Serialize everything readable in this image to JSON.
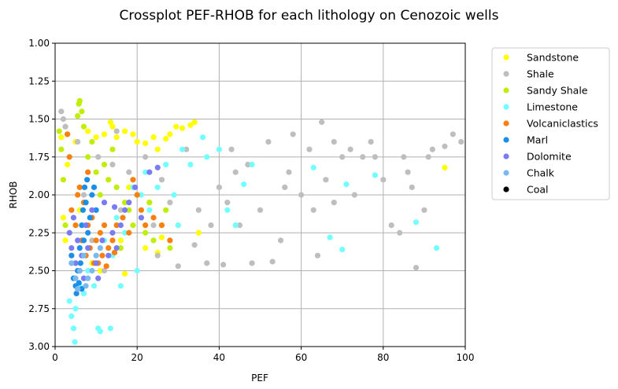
{
  "chart_data": {
    "type": "scatter",
    "title": "Crossplot PEF-RHOB for each lithology on Cenozoic wells",
    "xlabel": "PEF",
    "ylabel": "RHOB",
    "xlim": [
      0,
      100
    ],
    "ylim": [
      1.0,
      3.0
    ],
    "y_inverted": true,
    "xticks": [
      "0",
      "20",
      "40",
      "60",
      "80",
      "100"
    ],
    "yticks": [
      "1.00",
      "1.25",
      "1.50",
      "1.75",
      "2.00",
      "2.25",
      "2.50",
      "2.75",
      "3.00"
    ],
    "grid": true,
    "legend_position": "outside-right",
    "series": [
      {
        "name": "Sandstone",
        "color": "#ffff00",
        "points": [
          [
            1.5,
            1.62
          ],
          [
            2.0,
            2.15
          ],
          [
            2.5,
            2.3
          ],
          [
            3.0,
            1.8
          ],
          [
            4.0,
            2.4
          ],
          [
            5.0,
            1.65
          ],
          [
            8.0,
            1.58
          ],
          [
            10.0,
            1.62
          ],
          [
            12.0,
            1.6
          ],
          [
            13.5,
            1.52
          ],
          [
            14.0,
            1.55
          ],
          [
            15.0,
            1.62
          ],
          [
            17.0,
            1.58
          ],
          [
            19.0,
            1.6
          ],
          [
            20.0,
            1.65
          ],
          [
            22.0,
            1.66
          ],
          [
            24.0,
            1.62
          ],
          [
            25.0,
            1.7
          ],
          [
            27.0,
            1.63
          ],
          [
            28.0,
            1.6
          ],
          [
            29.5,
            1.55
          ],
          [
            31.0,
            1.56
          ],
          [
            33.0,
            1.54
          ],
          [
            34.0,
            1.52
          ],
          [
            9.0,
            2.45
          ],
          [
            11.0,
            2.5
          ],
          [
            17.0,
            2.52
          ],
          [
            22.0,
            2.35
          ],
          [
            25.0,
            2.38
          ],
          [
            30.0,
            2.2
          ],
          [
            35.0,
            2.25
          ],
          [
            95.0,
            1.82
          ],
          [
            18.0,
            1.95
          ],
          [
            23.0,
            2.05
          ],
          [
            6.0,
            2.1
          ],
          [
            13.0,
            1.9
          ],
          [
            26.0,
            2.28
          ],
          [
            16.0,
            2.3
          ]
        ]
      },
      {
        "name": "Shale",
        "color": "#bebebe",
        "points": [
          [
            1.5,
            1.45
          ],
          [
            2.0,
            1.5
          ],
          [
            2.5,
            1.55
          ],
          [
            5.5,
            1.65
          ],
          [
            7.0,
            2.0
          ],
          [
            9.0,
            2.3
          ],
          [
            10.5,
            1.75
          ],
          [
            12.0,
            2.5
          ],
          [
            14.0,
            1.8
          ],
          [
            16.0,
            2.1
          ],
          [
            18.0,
            1.85
          ],
          [
            20.0,
            2.0
          ],
          [
            22.0,
            1.75
          ],
          [
            24.0,
            2.2
          ],
          [
            26.0,
            1.9
          ],
          [
            28.0,
            2.05
          ],
          [
            30.0,
            2.47
          ],
          [
            32.0,
            1.7
          ],
          [
            35.0,
            2.1
          ],
          [
            37.0,
            2.45
          ],
          [
            40.0,
            1.95
          ],
          [
            41.0,
            2.46
          ],
          [
            43.0,
            1.7
          ],
          [
            45.0,
            2.2
          ],
          [
            47.0,
            1.8
          ],
          [
            48.0,
            2.45
          ],
          [
            50.0,
            2.1
          ],
          [
            52.0,
            1.65
          ],
          [
            53.0,
            2.44
          ],
          [
            55.0,
            2.3
          ],
          [
            57.0,
            1.85
          ],
          [
            58.0,
            1.6
          ],
          [
            60.0,
            2.0
          ],
          [
            62.0,
            1.7
          ],
          [
            63.0,
            2.1
          ],
          [
            64.0,
            2.4
          ],
          [
            65.0,
            1.52
          ],
          [
            66.0,
            1.9
          ],
          [
            68.0,
            2.05
          ],
          [
            70.0,
            1.75
          ],
          [
            72.0,
            1.7
          ],
          [
            73.0,
            2.0
          ],
          [
            75.0,
            1.75
          ],
          [
            77.0,
            1.65
          ],
          [
            78.0,
            1.75
          ],
          [
            80.0,
            1.9
          ],
          [
            82.0,
            2.2
          ],
          [
            84.0,
            2.25
          ],
          [
            85.0,
            1.75
          ],
          [
            87.0,
            1.95
          ],
          [
            88.0,
            2.48
          ],
          [
            90.0,
            2.1
          ],
          [
            92.0,
            1.7
          ],
          [
            95.0,
            1.68
          ],
          [
            97.0,
            1.6
          ],
          [
            99.0,
            1.65
          ],
          [
            38.0,
            2.2
          ],
          [
            44.0,
            1.85
          ],
          [
            56.0,
            1.95
          ],
          [
            68.0,
            1.65
          ],
          [
            86.0,
            1.85
          ],
          [
            91.0,
            1.75
          ],
          [
            34.0,
            2.33
          ],
          [
            42.0,
            2.05
          ],
          [
            25.0,
            2.4
          ],
          [
            15.0,
            1.58
          ]
        ]
      },
      {
        "name": "Sandy Shale",
        "color": "#c0ee0a",
        "points": [
          [
            1.0,
            1.58
          ],
          [
            1.5,
            1.7
          ],
          [
            2.0,
            1.9
          ],
          [
            2.5,
            2.2
          ],
          [
            3.0,
            1.6
          ],
          [
            5.5,
            1.48
          ],
          [
            5.8,
            1.4
          ],
          [
            6.0,
            1.38
          ],
          [
            6.5,
            1.45
          ],
          [
            7.0,
            1.55
          ],
          [
            8.0,
            1.75
          ],
          [
            9.0,
            1.65
          ],
          [
            10.0,
            1.85
          ],
          [
            12.0,
            1.8
          ],
          [
            13.0,
            1.9
          ],
          [
            14.0,
            1.7
          ],
          [
            15.0,
            1.95
          ],
          [
            17.0,
            2.05
          ],
          [
            18.0,
            2.1
          ],
          [
            19.0,
            2.2
          ],
          [
            20.0,
            2.0
          ],
          [
            21.0,
            2.15
          ],
          [
            22.0,
            2.25
          ],
          [
            23.0,
            2.05
          ],
          [
            24.0,
            2.3
          ],
          [
            26.0,
            2.2
          ],
          [
            27.0,
            2.1
          ],
          [
            28.0,
            2.35
          ],
          [
            16.0,
            2.35
          ],
          [
            11.0,
            2.0
          ]
        ]
      },
      {
        "name": "Limestone",
        "color": "#74ffff",
        "points": [
          [
            3.5,
            2.7
          ],
          [
            4.0,
            2.8
          ],
          [
            4.5,
            2.88
          ],
          [
            4.8,
            2.97
          ],
          [
            5.0,
            2.75
          ],
          [
            6.0,
            2.6
          ],
          [
            7.0,
            2.65
          ],
          [
            8.0,
            2.5
          ],
          [
            9.5,
            2.6
          ],
          [
            10.5,
            2.88
          ],
          [
            11.0,
            2.9
          ],
          [
            13.5,
            2.88
          ],
          [
            12.0,
            2.3
          ],
          [
            14.0,
            2.4
          ],
          [
            15.0,
            2.15
          ],
          [
            17.0,
            2.25
          ],
          [
            19.0,
            1.95
          ],
          [
            21.0,
            2.0
          ],
          [
            22.0,
            1.85
          ],
          [
            23.0,
            2.1
          ],
          [
            25.0,
            1.95
          ],
          [
            27.0,
            1.8
          ],
          [
            29.0,
            2.0
          ],
          [
            31.0,
            1.7
          ],
          [
            33.0,
            1.8
          ],
          [
            37.0,
            1.75
          ],
          [
            40.0,
            1.7
          ],
          [
            42.0,
            2.1
          ],
          [
            44.0,
            2.2
          ],
          [
            46.0,
            1.93
          ],
          [
            48.0,
            1.8
          ],
          [
            63.0,
            1.82
          ],
          [
            67.0,
            2.28
          ],
          [
            70.0,
            2.36
          ],
          [
            71.0,
            1.93
          ],
          [
            78.0,
            1.87
          ],
          [
            88.0,
            2.18
          ],
          [
            93.0,
            2.35
          ],
          [
            30.0,
            2.2
          ],
          [
            36.0,
            1.62
          ],
          [
            20.0,
            2.5
          ],
          [
            16.0,
            2.6
          ]
        ]
      },
      {
        "name": "Volcaniclastics",
        "color": "#f97f0f",
        "points": [
          [
            3.0,
            1.6
          ],
          [
            3.5,
            1.75
          ],
          [
            4.0,
            2.1
          ],
          [
            5.0,
            2.2
          ],
          [
            5.5,
            2.0
          ],
          [
            6.5,
            2.3
          ],
          [
            7.0,
            2.05
          ],
          [
            7.5,
            2.4
          ],
          [
            8.0,
            2.2
          ],
          [
            8.5,
            2.35
          ],
          [
            9.0,
            2.15
          ],
          [
            9.5,
            2.45
          ],
          [
            10.0,
            2.3
          ],
          [
            11.0,
            2.25
          ],
          [
            11.5,
            2.4
          ],
          [
            12.0,
            2.2
          ],
          [
            13.0,
            2.35
          ],
          [
            14.0,
            2.3
          ],
          [
            15.0,
            2.2
          ],
          [
            16.5,
            2.15
          ],
          [
            18.0,
            2.25
          ],
          [
            19.0,
            1.9
          ],
          [
            20.0,
            2.0
          ],
          [
            21.0,
            2.1
          ],
          [
            22.0,
            2.2
          ],
          [
            24.0,
            2.15
          ],
          [
            26.0,
            2.2
          ],
          [
            28.0,
            2.3
          ],
          [
            10.5,
            2.45
          ],
          [
            12.5,
            2.47
          ],
          [
            14.5,
            2.38
          ],
          [
            6.0,
            1.95
          ],
          [
            8.0,
            1.85
          ]
        ]
      },
      {
        "name": "Marl",
        "color": "#1a8fe8",
        "points": [
          [
            4.0,
            2.4
          ],
          [
            4.5,
            2.55
          ],
          [
            5.0,
            2.6
          ],
          [
            5.2,
            2.65
          ],
          [
            5.5,
            2.5
          ],
          [
            6.0,
            2.35
          ],
          [
            6.2,
            2.45
          ],
          [
            6.5,
            2.2
          ],
          [
            6.8,
            2.1
          ],
          [
            7.0,
            2.3
          ],
          [
            7.2,
            1.95
          ],
          [
            7.5,
            2.05
          ],
          [
            7.8,
            1.9
          ],
          [
            8.0,
            2.25
          ],
          [
            8.5,
            2.15
          ],
          [
            9.0,
            2.0
          ],
          [
            9.5,
            1.95
          ],
          [
            10.0,
            2.1
          ],
          [
            5.8,
            2.58
          ],
          [
            6.5,
            2.62
          ]
        ]
      },
      {
        "name": "Dolomite",
        "color": "#7b7bf4",
        "points": [
          [
            3.5,
            2.25
          ],
          [
            4.0,
            2.35
          ],
          [
            4.5,
            2.15
          ],
          [
            5.0,
            2.45
          ],
          [
            5.5,
            2.3
          ],
          [
            6.0,
            2.5
          ],
          [
            6.5,
            2.4
          ],
          [
            7.0,
            2.55
          ],
          [
            7.5,
            2.2
          ],
          [
            8.0,
            2.35
          ],
          [
            9.0,
            2.1
          ],
          [
            10.0,
            2.45
          ],
          [
            10.5,
            2.55
          ],
          [
            11.5,
            2.3
          ],
          [
            12.0,
            2.05
          ],
          [
            13.0,
            2.4
          ],
          [
            14.0,
            2.25
          ],
          [
            15.0,
            2.35
          ],
          [
            16.0,
            2.2
          ],
          [
            17.0,
            2.1
          ],
          [
            18.0,
            2.05
          ],
          [
            19.5,
            1.95
          ],
          [
            21.0,
            2.15
          ],
          [
            23.0,
            1.85
          ],
          [
            25.0,
            1.82
          ],
          [
            14.5,
            2.08
          ]
        ]
      },
      {
        "name": "Chalk",
        "color": "#7ab8f0",
        "points": [
          [
            4.0,
            2.45
          ],
          [
            5.0,
            2.55
          ],
          [
            6.0,
            2.5
          ],
          [
            7.0,
            2.4
          ],
          [
            8.0,
            2.55
          ],
          [
            9.0,
            2.5
          ],
          [
            10.0,
            2.4
          ],
          [
            11.0,
            2.35
          ],
          [
            5.5,
            2.62
          ],
          [
            7.5,
            2.6
          ]
        ]
      },
      {
        "name": "Coal",
        "color": "#000000",
        "points": []
      }
    ]
  }
}
